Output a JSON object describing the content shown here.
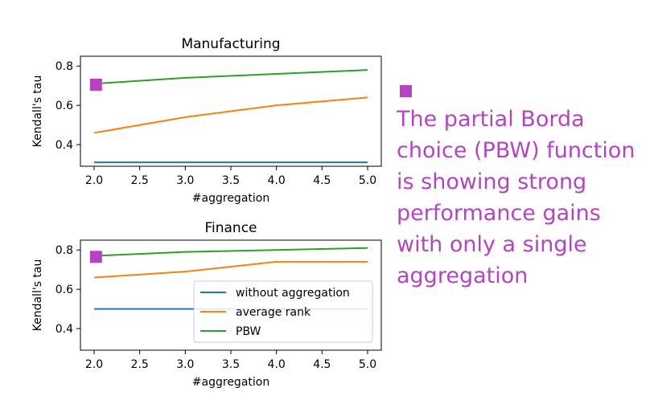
{
  "colors": {
    "without_aggregation": "#1f77b4",
    "average_rank": "#ff7f0e",
    "pbw": "#2ca02c",
    "highlight": "#b444c0"
  },
  "chart_data": [
    {
      "type": "line",
      "title": "Manufacturing",
      "xlabel": "#aggregation",
      "ylabel": "Kendall's tau",
      "x": [
        2,
        3,
        4,
        5
      ],
      "xlim": [
        1.85,
        5.15
      ],
      "ylim": [
        0.29,
        0.85
      ],
      "xticks": [
        "2.0",
        "2.5",
        "3.0",
        "3.5",
        "4.0",
        "4.5",
        "5.0"
      ],
      "yticks": [
        "0.4",
        "0.6",
        "0.8"
      ],
      "series": [
        {
          "name": "without aggregation",
          "values": [
            0.31,
            0.31,
            0.31,
            0.31
          ]
        },
        {
          "name": "average rank",
          "values": [
            0.46,
            0.54,
            0.6,
            0.64
          ]
        },
        {
          "name": "PBW",
          "values": [
            0.71,
            0.74,
            0.76,
            0.78
          ]
        }
      ],
      "marker": {
        "x": 2.02,
        "y": 0.705
      },
      "legend": false
    },
    {
      "type": "line",
      "title": "Finance",
      "xlabel": "#aggregation",
      "ylabel": "Kendall's tau",
      "x": [
        2,
        3,
        4,
        5
      ],
      "xlim": [
        1.85,
        5.15
      ],
      "ylim": [
        0.29,
        0.85
      ],
      "xticks": [
        "2.0",
        "2.5",
        "3.0",
        "3.5",
        "4.0",
        "4.5",
        "5.0"
      ],
      "yticks": [
        "0.4",
        "0.6",
        "0.8"
      ],
      "series": [
        {
          "name": "without aggregation",
          "values": [
            0.5,
            0.5,
            0.5,
            0.5
          ]
        },
        {
          "name": "average rank",
          "values": [
            0.66,
            0.69,
            0.74,
            0.74
          ]
        },
        {
          "name": "PBW",
          "values": [
            0.77,
            0.79,
            0.8,
            0.81
          ]
        }
      ],
      "marker": {
        "x": 2.02,
        "y": 0.765
      },
      "legend": true,
      "legend_position": "lower-right"
    }
  ],
  "annotation": {
    "text": "The partial Borda choice (PBW) function is showing strong performance gains with only a single aggregation"
  }
}
